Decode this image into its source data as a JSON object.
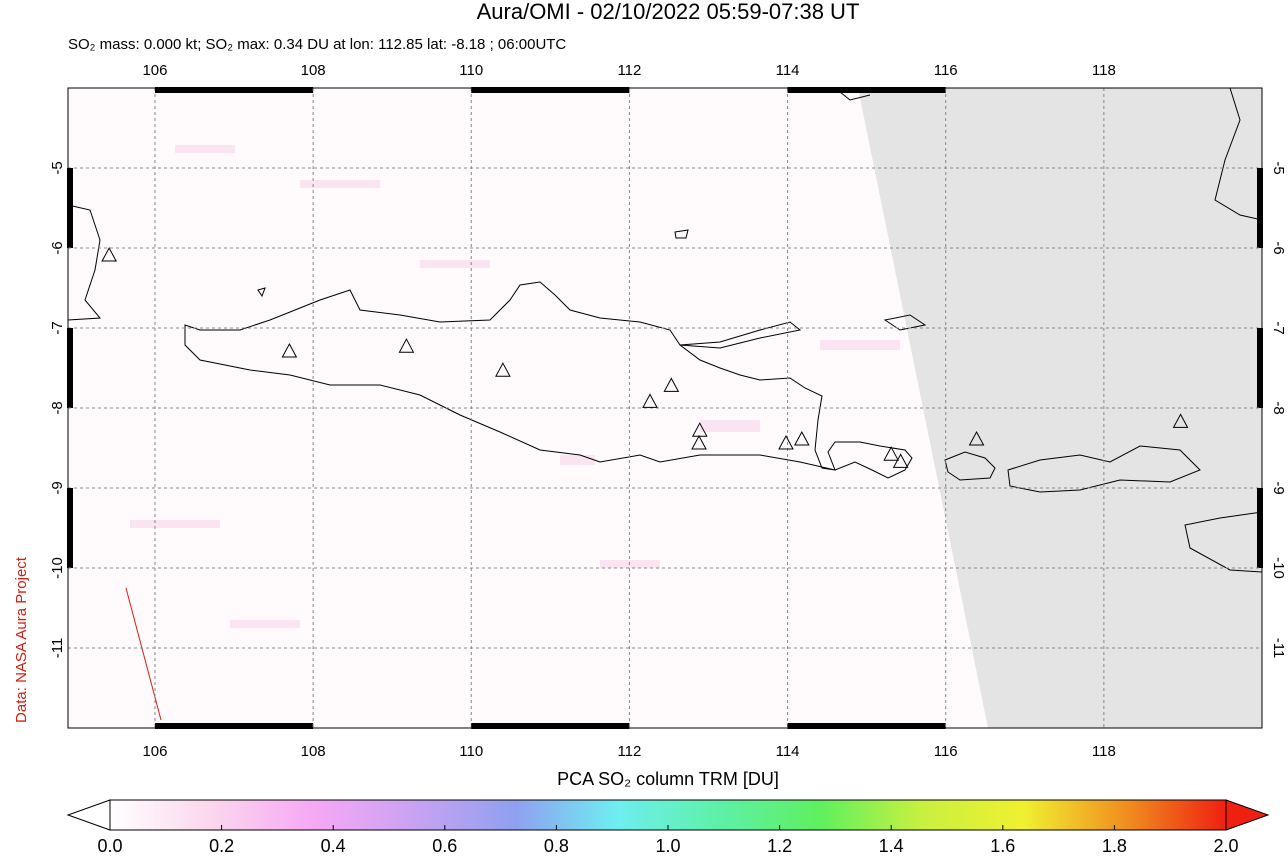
{
  "chart_data": {
    "type": "map",
    "title": "Aura/OMI - 02/10/2022 05:59-07:38 UT",
    "subtitle": "SO₂ mass: 0.000 kt; SO₂ max: 0.34 DU at lon: 112.85 lat: -8.18 ; 06:00UTC",
    "credit": "Data: NASA Aura Project",
    "xlim": [
      104.9,
      120
    ],
    "ylim": [
      -12,
      -4
    ],
    "xticks": [
      106,
      108,
      110,
      112,
      114,
      116,
      118
    ],
    "yticks": [
      -5,
      -6,
      -7,
      -8,
      -9,
      -10,
      -11
    ],
    "grid": true,
    "volcanoes": {
      "lon": [
        105.42,
        107.7,
        109.18,
        110.4,
        112.26,
        112.53,
        112.89,
        112.88,
        113.98,
        114.18,
        115.31,
        115.43,
        116.39,
        118.97
      ],
      "lat": [
        -6.1,
        -7.3,
        -7.24,
        -7.54,
        -7.93,
        -7.73,
        -8.29,
        -8.45,
        -8.45,
        -8.4,
        -8.59,
        -8.68,
        -8.4,
        -8.18
      ]
    },
    "colorbar": {
      "label": "PCA SO₂ column TRM [DU]",
      "lim": [
        0,
        2
      ],
      "ticks": [
        {
          "value": 0,
          "label": "0.0"
        },
        {
          "value": 0.2,
          "label": "0.2"
        },
        {
          "value": 0.4,
          "label": "0.4"
        },
        {
          "value": 0.6,
          "label": "0.6"
        },
        {
          "value": 0.8,
          "label": "0.8"
        },
        {
          "value": 1,
          "label": "1.0"
        },
        {
          "value": 1.2,
          "label": "1.2"
        },
        {
          "value": 1.4,
          "label": "1.4"
        },
        {
          "value": 1.6,
          "label": "1.6"
        },
        {
          "value": 1.8,
          "label": "1.8"
        },
        {
          "value": 2,
          "label": "2.0"
        }
      ],
      "colors": [
        "#ffffff",
        "#fbd6ee",
        "#f6a8f4",
        "#c9a2f2",
        "#8fa0f0",
        "#6eeef0",
        "#5ef0a8",
        "#5ef05e",
        "#c8f040",
        "#f0f030",
        "#f09020",
        "#f02010"
      ]
    }
  }
}
